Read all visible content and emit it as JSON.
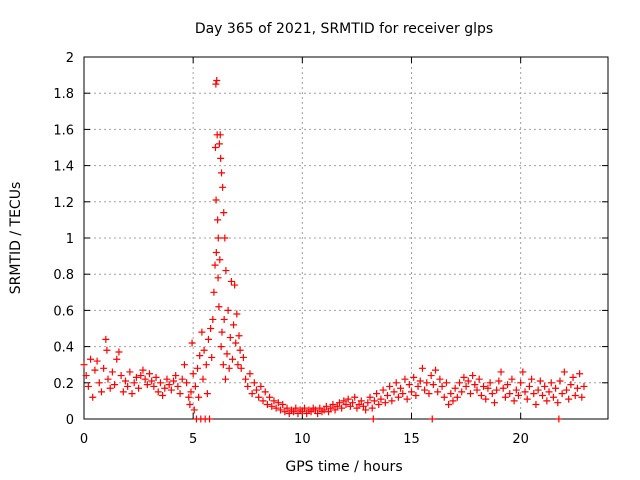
{
  "chart_data": {
    "type": "scatter",
    "title": "Day 365 of 2021, SRMTID for receiver glps",
    "xlabel": "GPS time / hours",
    "ylabel": "SRMTID / TECUs",
    "xlim": [
      0,
      24
    ],
    "ylim": [
      0,
      2
    ],
    "xticks": [
      0,
      5,
      10,
      15,
      20
    ],
    "xtick_labels": [
      "0",
      "5",
      "10",
      "15",
      "20"
    ],
    "yticks": [
      0,
      0.2,
      0.4,
      0.6,
      0.8,
      1,
      1.2,
      1.4,
      1.6,
      1.8,
      2
    ],
    "ytick_labels": [
      "0",
      "0.2",
      "0.4",
      "0.6",
      "0.8",
      "1",
      "1.2",
      "1.4",
      "1.6",
      "1.8",
      "2"
    ],
    "grid": true,
    "marker": "+",
    "color": "#ff0000",
    "series": [
      {
        "name": "SRMTID",
        "points": [
          [
            0.0,
            0.3
          ],
          [
            0.1,
            0.24
          ],
          [
            0.2,
            0.18
          ],
          [
            0.3,
            0.33
          ],
          [
            0.4,
            0.12
          ],
          [
            0.5,
            0.27
          ],
          [
            0.6,
            0.32
          ],
          [
            0.7,
            0.2
          ],
          [
            0.8,
            0.15
          ],
          [
            0.9,
            0.28
          ],
          [
            1.0,
            0.44
          ],
          [
            1.05,
            0.38
          ],
          [
            1.1,
            0.22
          ],
          [
            1.2,
            0.17
          ],
          [
            1.3,
            0.26
          ],
          [
            1.4,
            0.19
          ],
          [
            1.5,
            0.33
          ],
          [
            1.6,
            0.37
          ],
          [
            1.7,
            0.24
          ],
          [
            1.8,
            0.15
          ],
          [
            1.9,
            0.21
          ],
          [
            2.0,
            0.18
          ],
          [
            2.1,
            0.26
          ],
          [
            2.2,
            0.14
          ],
          [
            2.3,
            0.2
          ],
          [
            2.4,
            0.23
          ],
          [
            2.5,
            0.17
          ],
          [
            2.6,
            0.24
          ],
          [
            2.7,
            0.27
          ],
          [
            2.8,
            0.22
          ],
          [
            2.9,
            0.19
          ],
          [
            3.0,
            0.25
          ],
          [
            3.1,
            0.21
          ],
          [
            3.2,
            0.18
          ],
          [
            3.3,
            0.23
          ],
          [
            3.4,
            0.15
          ],
          [
            3.5,
            0.2
          ],
          [
            3.6,
            0.13
          ],
          [
            3.7,
            0.17
          ],
          [
            3.8,
            0.22
          ],
          [
            3.9,
            0.19
          ],
          [
            4.0,
            0.16
          ],
          [
            4.1,
            0.21
          ],
          [
            4.2,
            0.24
          ],
          [
            4.3,
            0.18
          ],
          [
            4.4,
            0.14
          ],
          [
            4.5,
            0.22
          ],
          [
            4.6,
            0.3
          ],
          [
            4.7,
            0.2
          ],
          [
            4.8,
            0.12
          ],
          [
            4.85,
            0.08
          ],
          [
            4.9,
            0.15
          ],
          [
            4.95,
            0.42
          ],
          [
            5.0,
            0.25
          ],
          [
            5.05,
            0.05
          ],
          [
            5.1,
            0.18
          ],
          [
            5.15,
            0.0
          ],
          [
            5.2,
            0.28
          ],
          [
            5.25,
            0.12
          ],
          [
            5.3,
            0.35
          ],
          [
            5.35,
            0.0
          ],
          [
            5.4,
            0.48
          ],
          [
            5.45,
            0.22
          ],
          [
            5.5,
            0.38
          ],
          [
            5.55,
            0.0
          ],
          [
            5.6,
            0.3
          ],
          [
            5.65,
            0.14
          ],
          [
            5.7,
            0.44
          ],
          [
            5.75,
            0.0
          ],
          [
            5.8,
            0.5
          ],
          [
            5.85,
            0.34
          ],
          [
            5.9,
            0.55
          ],
          [
            5.95,
            0.7
          ],
          [
            6.0,
            0.85
          ],
          [
            6.02,
            1.5
          ],
          [
            6.04,
            1.85
          ],
          [
            6.05,
            1.21
          ],
          [
            6.06,
            0.92
          ],
          [
            6.08,
            1.87
          ],
          [
            6.1,
            1.57
          ],
          [
            6.12,
            1.1
          ],
          [
            6.14,
            0.78
          ],
          [
            6.15,
            1.0
          ],
          [
            6.18,
            0.62
          ],
          [
            6.2,
            1.52
          ],
          [
            6.22,
            0.88
          ],
          [
            6.24,
            1.57
          ],
          [
            6.26,
            1.44
          ],
          [
            6.28,
            0.4
          ],
          [
            6.3,
            1.36
          ],
          [
            6.32,
            0.48
          ],
          [
            6.35,
            1.28
          ],
          [
            6.38,
            0.3
          ],
          [
            6.4,
            1.14
          ],
          [
            6.42,
            0.55
          ],
          [
            6.45,
            1.0
          ],
          [
            6.48,
            0.22
          ],
          [
            6.5,
            0.82
          ],
          [
            6.55,
            0.36
          ],
          [
            6.6,
            0.6
          ],
          [
            6.65,
            0.28
          ],
          [
            6.7,
            0.45
          ],
          [
            6.75,
            0.76
          ],
          [
            6.8,
            0.33
          ],
          [
            6.85,
            0.52
          ],
          [
            6.9,
            0.74
          ],
          [
            6.95,
            0.42
          ],
          [
            7.0,
            0.58
          ],
          [
            7.05,
            0.3
          ],
          [
            7.1,
            0.46
          ],
          [
            7.15,
            0.38
          ],
          [
            7.2,
            0.28
          ],
          [
            7.3,
            0.34
          ],
          [
            7.4,
            0.22
          ],
          [
            7.5,
            0.18
          ],
          [
            7.6,
            0.25
          ],
          [
            7.7,
            0.14
          ],
          [
            7.8,
            0.2
          ],
          [
            7.9,
            0.16
          ],
          [
            8.0,
            0.12
          ],
          [
            8.1,
            0.18
          ],
          [
            8.2,
            0.1
          ],
          [
            8.3,
            0.15
          ],
          [
            8.4,
            0.08
          ],
          [
            8.5,
            0.12
          ],
          [
            8.6,
            0.07
          ],
          [
            8.7,
            0.1
          ],
          [
            8.8,
            0.06
          ],
          [
            8.9,
            0.09
          ],
          [
            9.0,
            0.05
          ],
          [
            9.1,
            0.08
          ],
          [
            9.2,
            0.04
          ],
          [
            9.3,
            0.06
          ],
          [
            9.4,
            0.03
          ],
          [
            9.5,
            0.05
          ],
          [
            9.6,
            0.04
          ],
          [
            9.7,
            0.06
          ],
          [
            9.8,
            0.03
          ],
          [
            9.9,
            0.05
          ],
          [
            10.0,
            0.04
          ],
          [
            10.1,
            0.06
          ],
          [
            10.2,
            0.03
          ],
          [
            10.3,
            0.05
          ],
          [
            10.4,
            0.04
          ],
          [
            10.5,
            0.06
          ],
          [
            10.6,
            0.05
          ],
          [
            10.7,
            0.03
          ],
          [
            10.8,
            0.06
          ],
          [
            10.9,
            0.04
          ],
          [
            11.0,
            0.05
          ],
          [
            11.1,
            0.07
          ],
          [
            11.2,
            0.04
          ],
          [
            11.3,
            0.06
          ],
          [
            11.4,
            0.08
          ],
          [
            11.5,
            0.05
          ],
          [
            11.6,
            0.07
          ],
          [
            11.7,
            0.09
          ],
          [
            11.8,
            0.06
          ],
          [
            11.9,
            0.1
          ],
          [
            12.0,
            0.08
          ],
          [
            12.1,
            0.11
          ],
          [
            12.2,
            0.07
          ],
          [
            12.3,
            0.09
          ],
          [
            12.4,
            0.12
          ],
          [
            12.5,
            0.06
          ],
          [
            12.6,
            0.08
          ],
          [
            12.7,
            0.1
          ],
          [
            12.8,
            0.07
          ],
          [
            12.9,
            0.05
          ],
          [
            13.0,
            0.09
          ],
          [
            13.1,
            0.12
          ],
          [
            13.2,
            0.06
          ],
          [
            13.25,
            0.0
          ],
          [
            13.3,
            0.1
          ],
          [
            13.4,
            0.14
          ],
          [
            13.5,
            0.08
          ],
          [
            13.6,
            0.11
          ],
          [
            13.7,
            0.16
          ],
          [
            13.8,
            0.09
          ],
          [
            13.9,
            0.13
          ],
          [
            14.0,
            0.18
          ],
          [
            14.1,
            0.1
          ],
          [
            14.2,
            0.15
          ],
          [
            14.3,
            0.2
          ],
          [
            14.4,
            0.12
          ],
          [
            14.5,
            0.17
          ],
          [
            14.6,
            0.14
          ],
          [
            14.7,
            0.22
          ],
          [
            14.8,
            0.11
          ],
          [
            14.9,
            0.19
          ],
          [
            15.0,
            0.15
          ],
          [
            15.1,
            0.23
          ],
          [
            15.2,
            0.13
          ],
          [
            15.3,
            0.18
          ],
          [
            15.4,
            0.21
          ],
          [
            15.5,
            0.28
          ],
          [
            15.6,
            0.16
          ],
          [
            15.7,
            0.2
          ],
          [
            15.8,
            0.14
          ],
          [
            15.9,
            0.24
          ],
          [
            15.95,
            0.0
          ],
          [
            16.0,
            0.19
          ],
          [
            16.1,
            0.27
          ],
          [
            16.2,
            0.15
          ],
          [
            16.3,
            0.22
          ],
          [
            16.4,
            0.18
          ],
          [
            16.5,
            0.12
          ],
          [
            16.6,
            0.2
          ],
          [
            16.7,
            0.08
          ],
          [
            16.8,
            0.14
          ],
          [
            16.9,
            0.1
          ],
          [
            17.0,
            0.17
          ],
          [
            17.1,
            0.12
          ],
          [
            17.2,
            0.2
          ],
          [
            17.3,
            0.15
          ],
          [
            17.4,
            0.23
          ],
          [
            17.5,
            0.18
          ],
          [
            17.6,
            0.21
          ],
          [
            17.7,
            0.14
          ],
          [
            17.8,
            0.24
          ],
          [
            17.9,
            0.19
          ],
          [
            18.0,
            0.16
          ],
          [
            18.1,
            0.22
          ],
          [
            18.2,
            0.13
          ],
          [
            18.3,
            0.18
          ],
          [
            18.4,
            0.11
          ],
          [
            18.5,
            0.17
          ],
          [
            18.6,
            0.2
          ],
          [
            18.7,
            0.14
          ],
          [
            18.8,
            0.09
          ],
          [
            18.9,
            0.16
          ],
          [
            19.0,
            0.21
          ],
          [
            19.1,
            0.26
          ],
          [
            19.2,
            0.17
          ],
          [
            19.3,
            0.12
          ],
          [
            19.4,
            0.19
          ],
          [
            19.5,
            0.14
          ],
          [
            19.6,
            0.22
          ],
          [
            19.7,
            0.1
          ],
          [
            19.8,
            0.16
          ],
          [
            19.9,
            0.13
          ],
          [
            20.0,
            0.2
          ],
          [
            20.1,
            0.26
          ],
          [
            20.2,
            0.15
          ],
          [
            20.3,
            0.11
          ],
          [
            20.4,
            0.18
          ],
          [
            20.5,
            0.22
          ],
          [
            20.6,
            0.14
          ],
          [
            20.7,
            0.08
          ],
          [
            20.8,
            0.16
          ],
          [
            20.9,
            0.21
          ],
          [
            21.0,
            0.13
          ],
          [
            21.1,
            0.18
          ],
          [
            21.2,
            0.1
          ],
          [
            21.3,
            0.15
          ],
          [
            21.4,
            0.2
          ],
          [
            21.5,
            0.12
          ],
          [
            21.6,
            0.17
          ],
          [
            21.7,
            0.09
          ],
          [
            21.75,
            0.0
          ],
          [
            21.8,
            0.21
          ],
          [
            21.9,
            0.14
          ],
          [
            22.0,
            0.26
          ],
          [
            22.1,
            0.16
          ],
          [
            22.2,
            0.11
          ],
          [
            22.3,
            0.19
          ],
          [
            22.4,
            0.23
          ],
          [
            22.5,
            0.13
          ],
          [
            22.6,
            0.17
          ],
          [
            22.7,
            0.25
          ],
          [
            22.8,
            0.12
          ],
          [
            22.9,
            0.18
          ]
        ]
      }
    ]
  }
}
